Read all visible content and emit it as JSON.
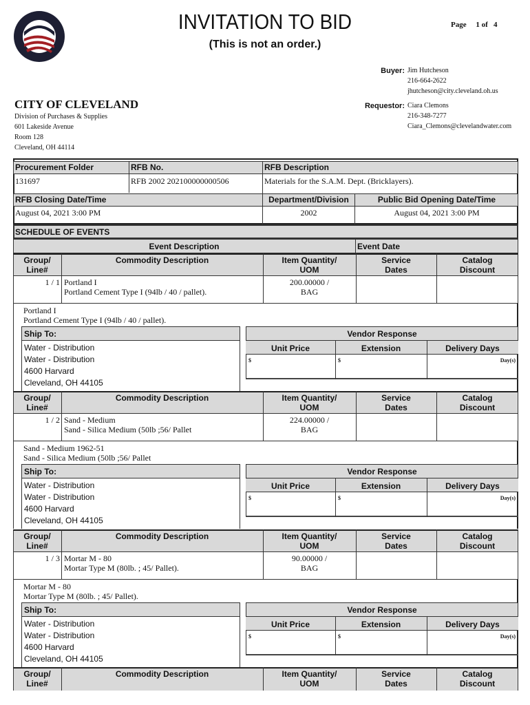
{
  "header": {
    "title": "INVITATION TO BID",
    "subtitle": "(This is not an order.)",
    "page_label": "Page",
    "page_of": "1 of   4",
    "seal_text": "CITY OF CLEVELAND OHIO"
  },
  "buyer": {
    "label": "Buyer:",
    "name": "Jim Hutcheson",
    "phone": "216-664-2622",
    "email": "jhutcheson@city.cleveland.oh.us"
  },
  "requestor": {
    "label": "Requestor:",
    "name": "Ciara Clemons",
    "phone": "216-348-7277",
    "email": "Ciara_Clemons@clevelandwater.com"
  },
  "org": {
    "name": "CITY OF CLEVELAND",
    "lines": [
      "Division of Purchases & Supplies",
      "601 Lakeside Avenue",
      "Room 128",
      "Cleveland, OH 44114"
    ]
  },
  "info": {
    "procurement_folder_label": "Procurement Folder",
    "procurement_folder": "131697",
    "rfb_no_label": "RFB No.",
    "rfb_no": "RFB 2002 202100000000506",
    "rfb_desc_label": "RFB Description",
    "rfb_desc": "Materials for the S.A.M. Dept. (Bricklayers).",
    "closing_label": "RFB Closing Date/Time",
    "closing": "August 04, 2021 3:00 PM",
    "dept_label": "Department/Division",
    "dept": "2002",
    "opening_label": "Public Bid Opening Date/Time",
    "opening": "August 04, 2021 3:00 PM"
  },
  "schedule": {
    "title": "SCHEDULE OF EVENTS",
    "event_desc": "Event Description",
    "event_date": "Event Date"
  },
  "columns": {
    "group": "Group/\nLine#",
    "commodity": "Commodity Description",
    "qty": "Item Quantity/\nUOM",
    "service": "Service\nDates",
    "catalog": "Catalog\nDiscount",
    "ship_to": "Ship To:",
    "vendor_response": "Vendor Response",
    "unit_price": "Unit Price",
    "extension": "Extension",
    "delivery_days": "Delivery Days",
    "currency": "$",
    "days_unit": "Day(s)"
  },
  "items": [
    {
      "line": "1 / 1",
      "name": "Portland I",
      "desc": "Portland Cement Type I (94lb / 40 / pallet).",
      "qty": "200.00000 /",
      "uom": "BAG",
      "long": [
        "Portland I",
        "Portland Cement Type I (94lb / 40 / pallet)."
      ],
      "ship": [
        "Water - Distribution",
        "Water - Distribution",
        "4600 Harvard",
        "Cleveland, OH 44105"
      ]
    },
    {
      "line": "1 / 2",
      "name": "Sand - Medium",
      "desc": "Sand - Silica Medium (50lb ;56/ Pallet",
      "qty": "224.00000 /",
      "uom": "BAG",
      "long": [
        "Sand - Medium 1962-51",
        "Sand - Silica Medium (50lb ;56/ Pallet"
      ],
      "ship": [
        "Water - Distribution",
        "Water - Distribution",
        "4600 Harvard",
        "Cleveland, OH 44105"
      ]
    },
    {
      "line": "1 / 3",
      "name": "Mortar M - 80",
      "desc": "Mortar Type M (80lb. ; 45/ Pallet).",
      "qty": "90.00000 /",
      "uom": "BAG",
      "long": [
        "Mortar M - 80",
        "Mortar Type M (80lb. ; 45/ Pallet)."
      ],
      "ship": [
        "Water - Distribution",
        "Water - Distribution",
        "4600 Harvard",
        "Cleveland, OH 44105"
      ]
    }
  ]
}
